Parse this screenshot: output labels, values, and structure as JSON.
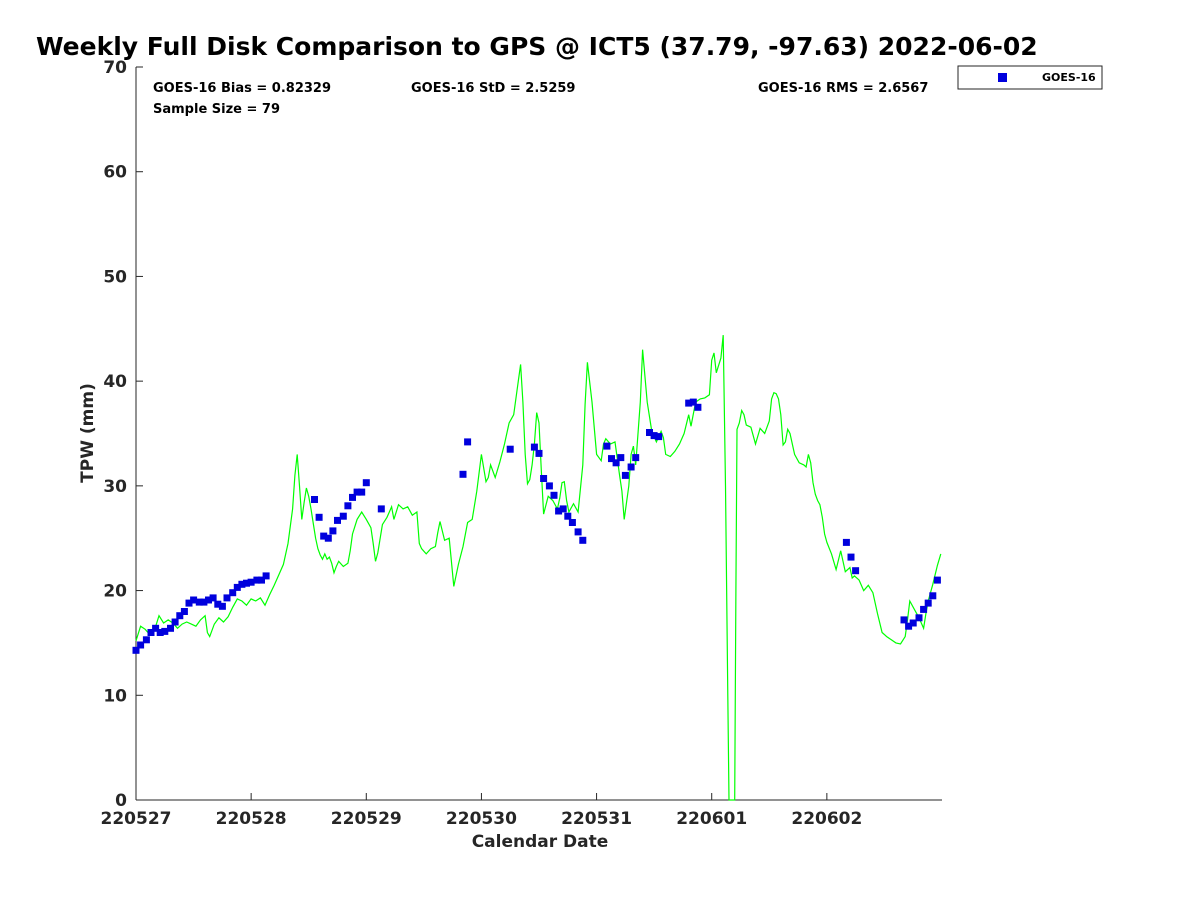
{
  "chart_data": {
    "type": "scatter",
    "title": "Weekly Full Disk Comparison to GPS @ ICT5 (37.79, -97.63) 2022-06-02",
    "xlabel": "Calendar Date",
    "ylabel": "TPW (mm)",
    "xlim": [
      0,
      7
    ],
    "ylim": [
      0,
      70
    ],
    "x_ticks": [
      0,
      1,
      2,
      3,
      4,
      5,
      6
    ],
    "x_tick_labels": [
      "220527",
      "220528",
      "220529",
      "220530",
      "220531",
      "220601",
      "220602"
    ],
    "y_ticks": [
      0,
      10,
      20,
      30,
      40,
      50,
      60,
      70
    ],
    "grid": false,
    "legend": {
      "position": "top-right",
      "entries": [
        "GOES-16"
      ]
    },
    "stats": {
      "bias": "GOES-16 Bias = 0.82329",
      "std": "GOES-16 StD = 2.5259",
      "rms": "GOES-16 RMS = 2.6567",
      "sample_size": "Sample Size = 79"
    },
    "series": [
      {
        "name": "GOES-16",
        "kind": "scatter",
        "color": "#0000dd",
        "points": [
          [
            0.0,
            14.3
          ],
          [
            0.04,
            14.8
          ],
          [
            0.09,
            15.3
          ],
          [
            0.13,
            16.0
          ],
          [
            0.17,
            16.4
          ],
          [
            0.21,
            16.0
          ],
          [
            0.25,
            16.1
          ],
          [
            0.3,
            16.4
          ],
          [
            0.34,
            17.0
          ],
          [
            0.38,
            17.6
          ],
          [
            0.42,
            18.0
          ],
          [
            0.46,
            18.8
          ],
          [
            0.5,
            19.1
          ],
          [
            0.55,
            18.9
          ],
          [
            0.59,
            18.9
          ],
          [
            0.63,
            19.1
          ],
          [
            0.67,
            19.3
          ],
          [
            0.71,
            18.7
          ],
          [
            0.75,
            18.5
          ],
          [
            0.79,
            19.3
          ],
          [
            0.84,
            19.8
          ],
          [
            0.88,
            20.3
          ],
          [
            0.92,
            20.6
          ],
          [
            0.96,
            20.7
          ],
          [
            1.0,
            20.8
          ],
          [
            1.05,
            21.0
          ],
          [
            1.09,
            21.0
          ],
          [
            1.13,
            21.4
          ],
          [
            1.55,
            28.7
          ],
          [
            1.59,
            27.0
          ],
          [
            1.63,
            25.2
          ],
          [
            1.67,
            25.0
          ],
          [
            1.71,
            25.7
          ],
          [
            1.75,
            26.7
          ],
          [
            1.8,
            27.1
          ],
          [
            1.84,
            28.1
          ],
          [
            1.88,
            28.9
          ],
          [
            1.92,
            29.4
          ],
          [
            1.96,
            29.4
          ],
          [
            2.0,
            30.3
          ],
          [
            2.13,
            27.8
          ],
          [
            2.84,
            31.1
          ],
          [
            2.88,
            34.2
          ],
          [
            3.25,
            33.5
          ],
          [
            3.46,
            33.7
          ],
          [
            3.5,
            33.1
          ],
          [
            3.54,
            30.7
          ],
          [
            3.59,
            30.0
          ],
          [
            3.63,
            29.1
          ],
          [
            3.67,
            27.6
          ],
          [
            3.71,
            27.8
          ],
          [
            3.75,
            27.1
          ],
          [
            3.79,
            26.5
          ],
          [
            3.84,
            25.6
          ],
          [
            3.88,
            24.8
          ],
          [
            4.09,
            33.8
          ],
          [
            4.13,
            32.6
          ],
          [
            4.17,
            32.2
          ],
          [
            4.21,
            32.7
          ],
          [
            4.25,
            31.0
          ],
          [
            4.3,
            31.8
          ],
          [
            4.34,
            32.7
          ],
          [
            4.46,
            35.1
          ],
          [
            4.5,
            34.8
          ],
          [
            4.54,
            34.7
          ],
          [
            4.8,
            37.9
          ],
          [
            4.84,
            38.0
          ],
          [
            4.88,
            37.5
          ],
          [
            6.17,
            24.6
          ],
          [
            6.21,
            23.2
          ],
          [
            6.25,
            21.9
          ],
          [
            6.67,
            17.2
          ],
          [
            6.71,
            16.6
          ],
          [
            6.75,
            16.9
          ],
          [
            6.8,
            17.4
          ],
          [
            6.84,
            18.2
          ],
          [
            6.88,
            18.8
          ],
          [
            6.92,
            19.5
          ],
          [
            6.96,
            21.0
          ]
        ]
      },
      {
        "name": "",
        "kind": "line",
        "color": "#00ff00",
        "points": [
          [
            0.0,
            15.2
          ],
          [
            0.04,
            16.6
          ],
          [
            0.08,
            16.3
          ],
          [
            0.12,
            15.8
          ],
          [
            0.16,
            16.2
          ],
          [
            0.2,
            17.6
          ],
          [
            0.24,
            16.9
          ],
          [
            0.28,
            17.2
          ],
          [
            0.32,
            16.9
          ],
          [
            0.36,
            16.4
          ],
          [
            0.4,
            16.8
          ],
          [
            0.44,
            17.0
          ],
          [
            0.48,
            16.8
          ],
          [
            0.52,
            16.6
          ],
          [
            0.56,
            17.2
          ],
          [
            0.6,
            17.6
          ],
          [
            0.62,
            16.0
          ],
          [
            0.64,
            15.6
          ],
          [
            0.68,
            16.8
          ],
          [
            0.72,
            17.4
          ],
          [
            0.76,
            17.0
          ],
          [
            0.8,
            17.5
          ],
          [
            0.84,
            18.4
          ],
          [
            0.88,
            19.2
          ],
          [
            0.92,
            19.0
          ],
          [
            0.96,
            18.6
          ],
          [
            1.0,
            19.2
          ],
          [
            1.04,
            19.0
          ],
          [
            1.08,
            19.3
          ],
          [
            1.12,
            18.6
          ],
          [
            1.16,
            19.6
          ],
          [
            1.2,
            20.5
          ],
          [
            1.24,
            21.5
          ],
          [
            1.28,
            22.5
          ],
          [
            1.32,
            24.5
          ],
          [
            1.36,
            27.8
          ],
          [
            1.38,
            31.0
          ],
          [
            1.4,
            33.0
          ],
          [
            1.42,
            30.0
          ],
          [
            1.44,
            26.8
          ],
          [
            1.46,
            28.4
          ],
          [
            1.48,
            29.8
          ],
          [
            1.5,
            29.0
          ],
          [
            1.52,
            27.8
          ],
          [
            1.54,
            26.4
          ],
          [
            1.56,
            25.0
          ],
          [
            1.58,
            24.0
          ],
          [
            1.6,
            23.4
          ],
          [
            1.62,
            23.0
          ],
          [
            1.64,
            23.5
          ],
          [
            1.66,
            23.0
          ],
          [
            1.68,
            23.2
          ],
          [
            1.7,
            22.6
          ],
          [
            1.72,
            21.7
          ],
          [
            1.74,
            22.3
          ],
          [
            1.76,
            22.8
          ],
          [
            1.8,
            22.3
          ],
          [
            1.84,
            22.6
          ],
          [
            1.86,
            23.8
          ],
          [
            1.88,
            25.4
          ],
          [
            1.92,
            26.8
          ],
          [
            1.96,
            27.5
          ],
          [
            2.0,
            26.8
          ],
          [
            2.04,
            26.0
          ],
          [
            2.06,
            24.5
          ],
          [
            2.08,
            22.8
          ],
          [
            2.1,
            23.6
          ],
          [
            2.14,
            26.3
          ],
          [
            2.18,
            27.0
          ],
          [
            2.22,
            28.0
          ],
          [
            2.24,
            26.8
          ],
          [
            2.28,
            28.2
          ],
          [
            2.32,
            27.8
          ],
          [
            2.36,
            28.0
          ],
          [
            2.4,
            27.2
          ],
          [
            2.44,
            27.5
          ],
          [
            2.46,
            24.5
          ],
          [
            2.48,
            24.0
          ],
          [
            2.52,
            23.5
          ],
          [
            2.56,
            24.0
          ],
          [
            2.6,
            24.2
          ],
          [
            2.62,
            25.5
          ],
          [
            2.64,
            26.6
          ],
          [
            2.68,
            24.8
          ],
          [
            2.72,
            25.0
          ],
          [
            2.76,
            20.4
          ],
          [
            2.8,
            22.5
          ],
          [
            2.84,
            24.2
          ],
          [
            2.88,
            26.5
          ],
          [
            2.92,
            26.8
          ],
          [
            2.96,
            29.5
          ],
          [
            3.0,
            33.0
          ],
          [
            3.04,
            30.4
          ],
          [
            3.06,
            30.8
          ],
          [
            3.08,
            32.0
          ],
          [
            3.12,
            30.8
          ],
          [
            3.16,
            32.3
          ],
          [
            3.2,
            34.0
          ],
          [
            3.24,
            36.0
          ],
          [
            3.28,
            36.8
          ],
          [
            3.32,
            40.0
          ],
          [
            3.34,
            41.6
          ],
          [
            3.36,
            38.0
          ],
          [
            3.38,
            33.0
          ],
          [
            3.4,
            30.2
          ],
          [
            3.42,
            30.6
          ],
          [
            3.44,
            32.0
          ],
          [
            3.46,
            34.0
          ],
          [
            3.48,
            37.0
          ],
          [
            3.5,
            36.0
          ],
          [
            3.52,
            31.5
          ],
          [
            3.54,
            27.3
          ],
          [
            3.58,
            29.0
          ],
          [
            3.62,
            28.6
          ],
          [
            3.66,
            27.8
          ],
          [
            3.68,
            28.8
          ],
          [
            3.7,
            30.3
          ],
          [
            3.72,
            30.4
          ],
          [
            3.74,
            28.6
          ],
          [
            3.76,
            27.5
          ],
          [
            3.8,
            28.3
          ],
          [
            3.84,
            27.5
          ],
          [
            3.88,
            32.0
          ],
          [
            3.9,
            37.8
          ],
          [
            3.92,
            41.8
          ],
          [
            3.96,
            38.0
          ],
          [
            4.0,
            33.0
          ],
          [
            4.04,
            32.4
          ],
          [
            4.06,
            34.0
          ],
          [
            4.08,
            34.5
          ],
          [
            4.12,
            34.0
          ],
          [
            4.16,
            34.2
          ],
          [
            4.2,
            31.0
          ],
          [
            4.22,
            29.5
          ],
          [
            4.24,
            26.8
          ],
          [
            4.28,
            30.0
          ],
          [
            4.3,
            33.0
          ],
          [
            4.32,
            33.8
          ],
          [
            4.34,
            32.0
          ],
          [
            4.38,
            38.0
          ],
          [
            4.4,
            43.0
          ],
          [
            4.44,
            38.0
          ],
          [
            4.48,
            35.2
          ],
          [
            4.52,
            34.2
          ],
          [
            4.56,
            35.2
          ],
          [
            4.58,
            34.6
          ],
          [
            4.6,
            33.0
          ],
          [
            4.64,
            32.8
          ],
          [
            4.68,
            33.3
          ],
          [
            4.72,
            34.0
          ],
          [
            4.76,
            35.0
          ],
          [
            4.8,
            36.8
          ],
          [
            4.82,
            35.7
          ],
          [
            4.86,
            38.0
          ],
          [
            4.9,
            38.3
          ],
          [
            4.94,
            38.4
          ],
          [
            4.98,
            38.7
          ],
          [
            5.0,
            42.0
          ],
          [
            5.02,
            42.7
          ],
          [
            5.04,
            40.8
          ],
          [
            5.08,
            42.2
          ],
          [
            5.1,
            44.4
          ],
          [
            5.12,
            30.0
          ],
          [
            5.14,
            10.0
          ],
          [
            5.15,
            0.0
          ],
          [
            5.2,
            0.0
          ],
          [
            5.21,
            20.0
          ],
          [
            5.22,
            35.4
          ],
          [
            5.24,
            36.0
          ],
          [
            5.26,
            37.2
          ],
          [
            5.28,
            36.8
          ],
          [
            5.3,
            35.8
          ],
          [
            5.34,
            35.6
          ],
          [
            5.38,
            34.0
          ],
          [
            5.42,
            35.5
          ],
          [
            5.46,
            35.0
          ],
          [
            5.5,
            36.2
          ],
          [
            5.52,
            38.3
          ],
          [
            5.54,
            38.9
          ],
          [
            5.56,
            38.8
          ],
          [
            5.58,
            38.3
          ],
          [
            5.6,
            36.8
          ],
          [
            5.62,
            33.9
          ],
          [
            5.64,
            34.2
          ],
          [
            5.66,
            35.4
          ],
          [
            5.68,
            35.0
          ],
          [
            5.72,
            33.0
          ],
          [
            5.76,
            32.2
          ],
          [
            5.8,
            32.0
          ],
          [
            5.82,
            31.8
          ],
          [
            5.84,
            33.0
          ],
          [
            5.86,
            32.2
          ],
          [
            5.88,
            30.3
          ],
          [
            5.9,
            29.2
          ],
          [
            5.92,
            28.6
          ],
          [
            5.94,
            28.2
          ],
          [
            5.96,
            27.0
          ],
          [
            5.98,
            25.4
          ],
          [
            6.0,
            24.6
          ],
          [
            6.04,
            23.5
          ],
          [
            6.08,
            22.0
          ],
          [
            6.12,
            23.8
          ],
          [
            6.16,
            21.8
          ],
          [
            6.2,
            22.2
          ],
          [
            6.22,
            21.2
          ],
          [
            6.24,
            21.4
          ],
          [
            6.28,
            21.0
          ],
          [
            6.32,
            20.0
          ],
          [
            6.36,
            20.5
          ],
          [
            6.4,
            19.8
          ],
          [
            6.44,
            17.8
          ],
          [
            6.48,
            16.0
          ],
          [
            6.52,
            15.6
          ],
          [
            6.56,
            15.3
          ],
          [
            6.6,
            15.0
          ],
          [
            6.64,
            14.9
          ],
          [
            6.68,
            15.6
          ],
          [
            6.7,
            17.2
          ],
          [
            6.72,
            19.0
          ],
          [
            6.76,
            18.2
          ],
          [
            6.8,
            17.4
          ],
          [
            6.84,
            16.4
          ],
          [
            6.86,
            17.8
          ],
          [
            6.88,
            19.0
          ],
          [
            6.92,
            20.6
          ],
          [
            6.96,
            22.4
          ],
          [
            6.99,
            23.5
          ]
        ]
      }
    ]
  }
}
